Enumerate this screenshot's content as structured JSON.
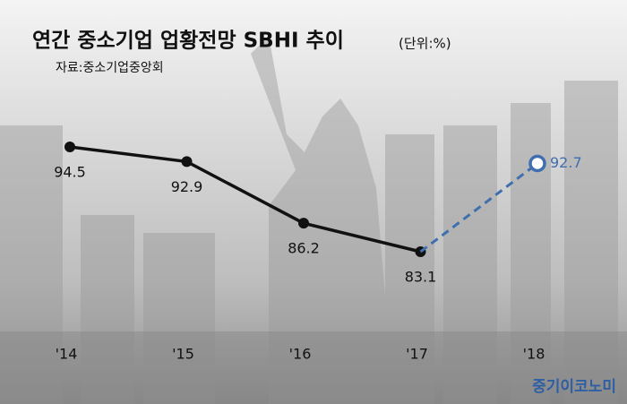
{
  "chart_data": {
    "type": "line",
    "title": "연간 중소기업 업황전망 SBHI 추이",
    "subtitle": "(단위:%)",
    "source": "자료:중소기업중앙회",
    "watermark": "중기이코노미",
    "categories": [
      "'14",
      "'15",
      "'16",
      "'17",
      "'18"
    ],
    "series": [
      {
        "color": "#111111",
        "dashed": false,
        "values": [
          94.5,
          92.9,
          86.2,
          83.1,
          null
        ]
      },
      {
        "color": "#3f6fae",
        "dashed": true,
        "values": [
          null,
          null,
          null,
          83.1,
          92.7
        ]
      }
    ]
  }
}
